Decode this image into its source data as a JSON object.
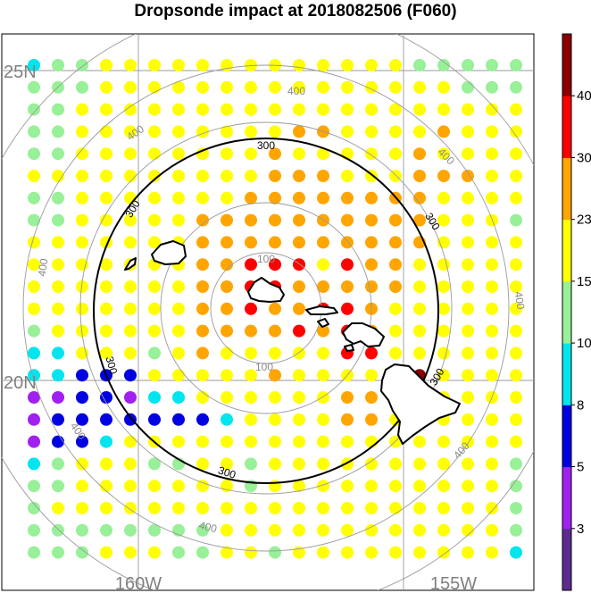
{
  "title": "Dropsonde impact at 2018082506 (F060)",
  "axis_labels": {
    "lat_25": "25N",
    "lat_20": "20N",
    "lon_160": "160W",
    "lon_155": "155W"
  },
  "ring_labels": {
    "r100": "100",
    "r300": "300",
    "r400": "400"
  },
  "colorbar": {
    "labels": [
      "3",
      "5",
      "8",
      "10",
      "15",
      "23",
      "30",
      "40"
    ],
    "colors": [
      "#5b2c8f",
      "#a020f0",
      "#0000e0",
      "#00e5ee",
      "#98f098",
      "#ffff00",
      "#ffa500",
      "#ff0000",
      "#8b0000"
    ]
  },
  "grid_note": "Dot grid 21 columns x 23 rows; each letter = level index (A=lowest .. I=highest)",
  "dot_rows": [
    "DEEFFFFFFFFFFFFFEEEEE",
    "EEEFFFFFFFFFFFFFFFEEE",
    "EEFFFFFFFFFFFFFFFFFFF",
    "EEFFFFFFFFFGGFFFFGFFF",
    "EEFFFFFFFFGFFFFFGFFFF",
    "FFFFFFFFFFGGGFFFGGGFF",
    "EEFFFFFFFGGGGGGGGFFFF",
    "EEFFFFFGGGGGGGGGGFFFE",
    "FFFFFFFGGGGGGGGGGFFFF",
    "FFFFFFFGGHHHFHGGFFFFF",
    "FFFFFFFGGHHGGGGGFFFFF",
    "FFFFFFFGGHGGHHGFFFFFF",
    "EFFFFFFGGGGHGHGFFFFFF",
    "DDFFFEFGFFFFFHHFFFFFF",
    "DDCCCFFFFFGFFFFFIFFFF",
    "BBCCBDDFFFFFFGGFFFFFF",
    "BCCCCCCCDFFFFGGFFFFFF",
    "BCCDFFFFFFFFFFFFFFFFF",
    "DEFFFEEFFEFFFFFFFFFFE",
    "EEFFFFFFFEFFFFFFFFFFE",
    "EFFFFFFFFFFFFFFFFFFFE",
    "EEEEEEEEFFFFFFFFFFFFE",
    "EEEFFFEEFFEFFFFFFFFFD"
  ]
}
